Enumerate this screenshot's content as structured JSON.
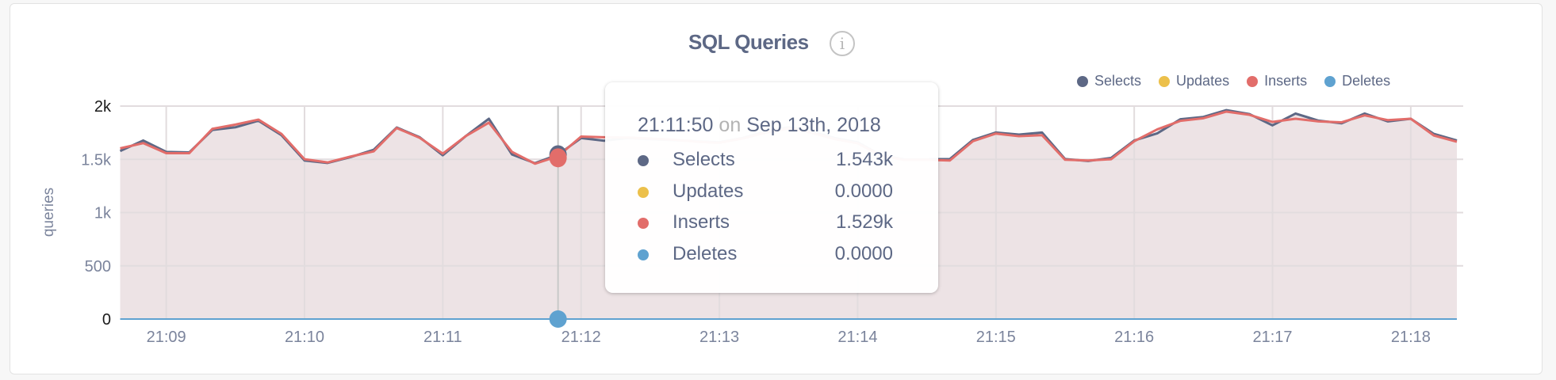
{
  "colors": {
    "selects": "#5d6885",
    "updates": "#ecc04b",
    "inserts": "#e26d6a",
    "deletes": "#5fa2d0",
    "fill": "#ede3e5",
    "grid": "#e2dcde"
  },
  "header": {
    "title": "SQL Queries",
    "info_icon": "info-icon"
  },
  "legend": [
    {
      "label": "Selects",
      "color": "#5d6885"
    },
    {
      "label": "Updates",
      "color": "#ecc04b"
    },
    {
      "label": "Inserts",
      "color": "#e26d6a"
    },
    {
      "label": "Deletes",
      "color": "#5fa2d0"
    }
  ],
  "tooltip": {
    "time": "21:11:50",
    "on": "on",
    "date": "Sep 13th, 2018",
    "rows": [
      {
        "label": "Selects",
        "value": "1.543k",
        "color": "#5d6885"
      },
      {
        "label": "Updates",
        "value": "0.0000",
        "color": "#ecc04b"
      },
      {
        "label": "Inserts",
        "value": "1.529k",
        "color": "#e26d6a"
      },
      {
        "label": "Deletes",
        "value": "0.0000",
        "color": "#5fa2d0"
      }
    ]
  },
  "chart_data": {
    "type": "area",
    "title": "SQL Queries",
    "ylabel": "queries",
    "ylim": [
      0,
      2000
    ],
    "yticks": [
      "0",
      "500",
      "1k",
      "1.5k",
      "2k"
    ],
    "ytick_values": [
      0,
      500,
      1000,
      1500,
      2000
    ],
    "xlim": [
      "21:08:40",
      "21:18:20"
    ],
    "xticks": [
      "21:09",
      "21:10",
      "21:11",
      "21:12",
      "21:13",
      "21:14",
      "21:15",
      "21:16",
      "21:17",
      "21:18"
    ],
    "x_interval_seconds": 10,
    "x_start": "21:08:40",
    "grid": true,
    "legend_position": "top-right",
    "hover_time": "21:11:50",
    "series": [
      {
        "name": "Selects",
        "values": [
          1578,
          1677,
          1570,
          1565,
          1776,
          1801,
          1863,
          1727,
          1489,
          1466,
          1521,
          1590,
          1799,
          1707,
          1538,
          1719,
          1881,
          1546,
          1464,
          1543,
          1700,
          1675,
          1700,
          1690,
          1680,
          1670,
          1660,
          1700,
          1760,
          1800,
          1760,
          1700,
          1660,
          1540,
          1500,
          1500,
          1503,
          1682,
          1752,
          1732,
          1752,
          1503,
          1484,
          1513,
          1677,
          1744,
          1876,
          1898,
          1962,
          1925,
          1819,
          1930,
          1863,
          1838,
          1930,
          1856,
          1881,
          1739,
          1677
        ]
      },
      {
        "name": "Updates",
        "values": [
          0,
          0,
          0,
          0,
          0,
          0,
          0,
          0,
          0,
          0,
          0,
          0,
          0,
          0,
          0,
          0,
          0,
          0,
          0,
          0,
          0,
          0,
          0,
          0,
          0,
          0,
          0,
          0,
          0,
          0,
          0,
          0,
          0,
          0,
          0,
          0,
          0,
          0,
          0,
          0,
          0,
          0,
          0,
          0,
          0,
          0,
          0,
          0,
          0,
          0,
          0,
          0,
          0,
          0,
          0,
          0,
          0,
          0,
          0
        ]
      },
      {
        "name": "Inserts",
        "values": [
          1603,
          1652,
          1558,
          1558,
          1786,
          1826,
          1873,
          1739,
          1501,
          1471,
          1526,
          1575,
          1794,
          1702,
          1553,
          1719,
          1844,
          1570,
          1459,
          1529,
          1714,
          1707,
          1705,
          1695,
          1685,
          1665,
          1655,
          1695,
          1750,
          1790,
          1750,
          1690,
          1650,
          1535,
          1495,
          1495,
          1489,
          1670,
          1742,
          1717,
          1727,
          1496,
          1489,
          1501,
          1670,
          1781,
          1861,
          1886,
          1948,
          1918,
          1851,
          1881,
          1856,
          1848,
          1913,
          1868,
          1881,
          1724,
          1665
        ]
      },
      {
        "name": "Deletes",
        "values": [
          0,
          0,
          0,
          0,
          0,
          0,
          0,
          0,
          0,
          0,
          0,
          0,
          0,
          0,
          0,
          0,
          0,
          0,
          0,
          0,
          0,
          0,
          0,
          0,
          0,
          0,
          0,
          0,
          0,
          0,
          0,
          0,
          0,
          0,
          0,
          0,
          0,
          0,
          0,
          0,
          0,
          0,
          0,
          0,
          0,
          0,
          0,
          0,
          0,
          0,
          0,
          0,
          0,
          0,
          0,
          0,
          0,
          0,
          0
        ]
      }
    ]
  }
}
